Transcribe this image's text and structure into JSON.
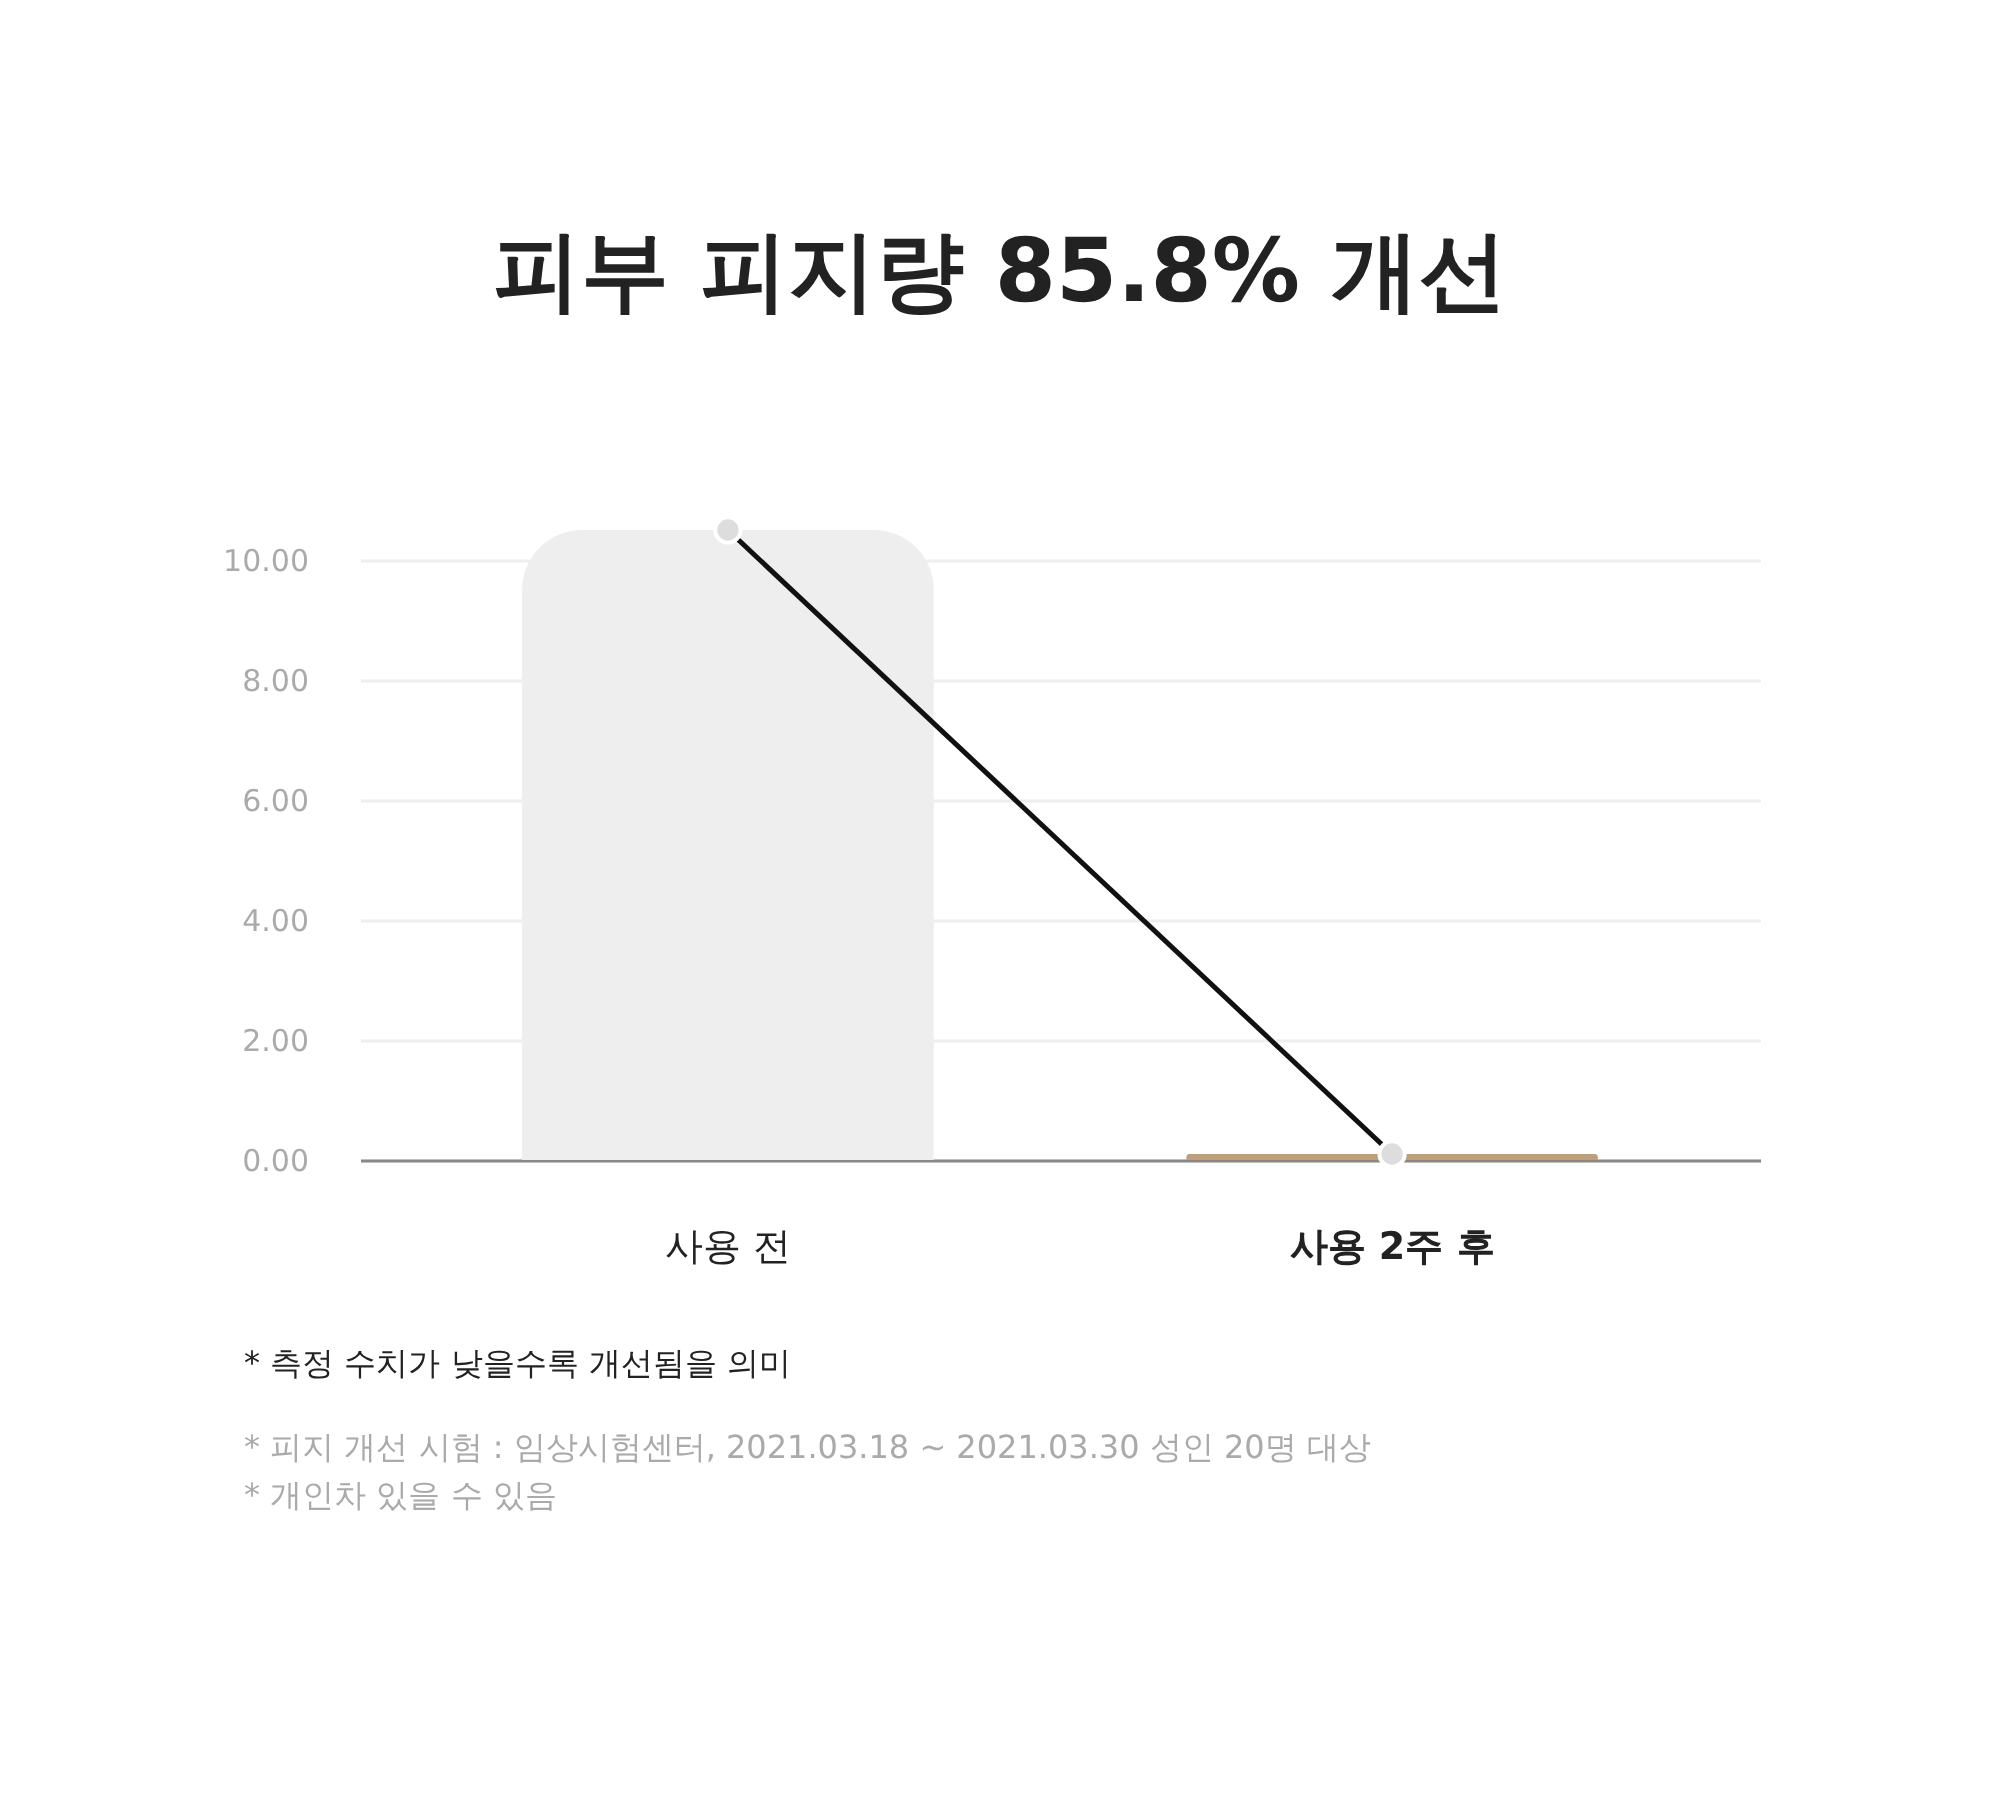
{
  "chart_data": {
    "type": "bar",
    "title": "피부 피지량 85.8% 개선",
    "categories": [
      "사용 전",
      "사용 2주 후"
    ],
    "series": [
      {
        "colors": [
          "#eeeeee",
          "#bf9f78"
        ],
        "values": [
          10.5,
          0.1
        ]
      },
      {
        "type": "line",
        "color": "#111111",
        "values": [
          10.5,
          0.1
        ]
      }
    ],
    "ylim": [
      0,
      10.5
    ],
    "yticks": [
      {
        "value": 0,
        "label": "0.00"
      },
      {
        "value": 2,
        "label": "2.00"
      },
      {
        "value": 4,
        "label": "4.00"
      },
      {
        "value": 6,
        "label": "6.00"
      },
      {
        "value": 8,
        "label": "8.00"
      },
      {
        "value": 10,
        "label": "10.00"
      }
    ],
    "grid": "y",
    "marker": "circle",
    "annotations": [
      "* 측정 수치가 낮을수록 개선됨을 의미",
      "* 피지 개선 시험 : 임상시험센터, 2021.03.18 ~ 2021.03.30 성인 20명 대상",
      "* 개인차 있을 수 있음"
    ]
  }
}
